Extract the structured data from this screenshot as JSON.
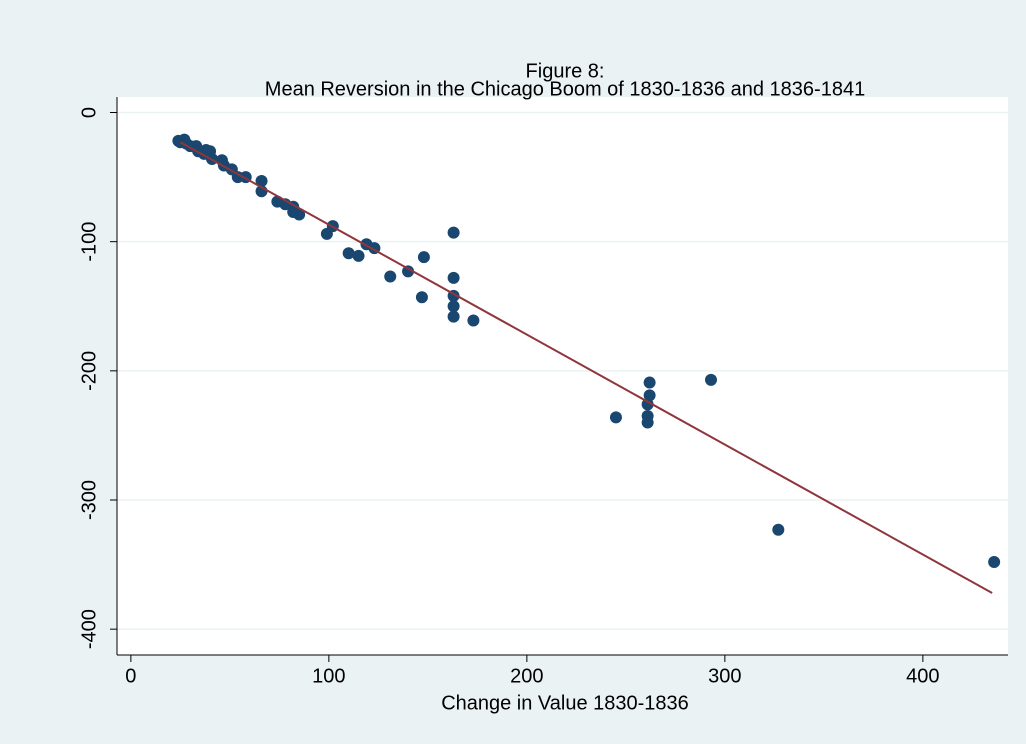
{
  "chart_data": {
    "type": "scatter",
    "title": "Figure 8:",
    "subtitle": "Mean Reversion in the Chicago Boom of 1830-1836 and 1836-1841",
    "xlabel": "Change in Value 1830-1836",
    "xlim": [
      -7,
      443
    ],
    "ylim": [
      12,
      -420
    ],
    "xticks": [
      0,
      100,
      200,
      300,
      400
    ],
    "yticks": [
      0,
      -100,
      -200,
      -300,
      -400
    ],
    "grid": true,
    "series": [
      {
        "type": "scatter",
        "color": "#1a476f",
        "x": [
          24,
          25,
          27,
          28,
          30,
          33,
          34,
          37,
          38,
          40,
          41,
          46,
          47,
          51,
          54,
          58,
          66,
          66,
          74,
          78,
          82,
          82,
          85,
          99,
          102,
          110,
          115,
          119,
          123,
          131,
          140,
          148,
          147,
          163,
          163,
          163,
          163,
          163,
          173,
          245,
          262,
          262,
          261,
          261,
          261,
          293,
          327,
          436
        ],
        "values": [
          -22,
          -23,
          -21,
          -24,
          -26,
          -26,
          -30,
          -32,
          -29,
          -30,
          -36,
          -37,
          -41,
          -44,
          -50,
          -50,
          -53,
          -61,
          -69,
          -71,
          -77,
          -73,
          -79,
          -94,
          -88,
          -109,
          -111,
          -102,
          -105,
          -127,
          -123,
          -112,
          -143,
          -93,
          -128,
          -142,
          -150,
          -158,
          -161,
          -236,
          -209,
          -219,
          -226,
          -235,
          -240,
          -207,
          -323,
          -348
        ]
      },
      {
        "type": "line",
        "color": "#90353b",
        "x": [
          25,
          435
        ],
        "values": [
          -23,
          -372
        ]
      }
    ]
  }
}
